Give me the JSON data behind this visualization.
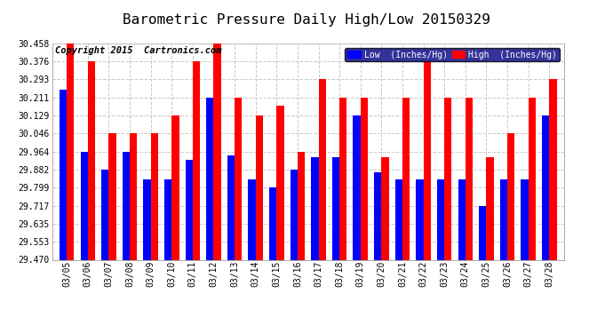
{
  "title": "Barometric Pressure Daily High/Low 20150329",
  "copyright": "Copyright 2015  Cartronics.com",
  "dates": [
    "03/05",
    "03/06",
    "03/07",
    "03/08",
    "03/09",
    "03/10",
    "03/11",
    "03/12",
    "03/13",
    "03/14",
    "03/15",
    "03/16",
    "03/17",
    "03/18",
    "03/19",
    "03/20",
    "03/21",
    "03/22",
    "03/23",
    "03/24",
    "03/25",
    "03/26",
    "03/27",
    "03/28"
  ],
  "low_values": [
    30.245,
    29.964,
    29.882,
    29.964,
    29.835,
    29.835,
    29.928,
    30.211,
    29.946,
    29.835,
    29.8,
    29.882,
    29.94,
    29.94,
    30.129,
    29.87,
    29.835,
    29.835,
    29.835,
    29.835,
    29.717,
    29.835,
    29.835,
    30.129
  ],
  "high_values": [
    30.458,
    30.376,
    30.046,
    30.046,
    30.046,
    30.129,
    30.376,
    30.458,
    30.211,
    30.129,
    30.175,
    29.964,
    30.293,
    30.211,
    30.211,
    29.94,
    30.211,
    30.376,
    30.211,
    30.211,
    29.94,
    30.046,
    30.211,
    30.293
  ],
  "low_color": "#0000ff",
  "high_color": "#ff0000",
  "bg_color": "#ffffff",
  "grid_color": "#c8c8c8",
  "ymin": 29.47,
  "ymax": 30.458,
  "yticks": [
    29.47,
    29.553,
    29.635,
    29.717,
    29.799,
    29.882,
    29.964,
    30.046,
    30.129,
    30.211,
    30.293,
    30.376,
    30.458
  ],
  "legend_low_label": "Low  (Inches/Hg)",
  "legend_high_label": "High  (Inches/Hg)",
  "title_fontsize": 11.5,
  "copyright_fontsize": 7.5,
  "bar_width": 0.35
}
